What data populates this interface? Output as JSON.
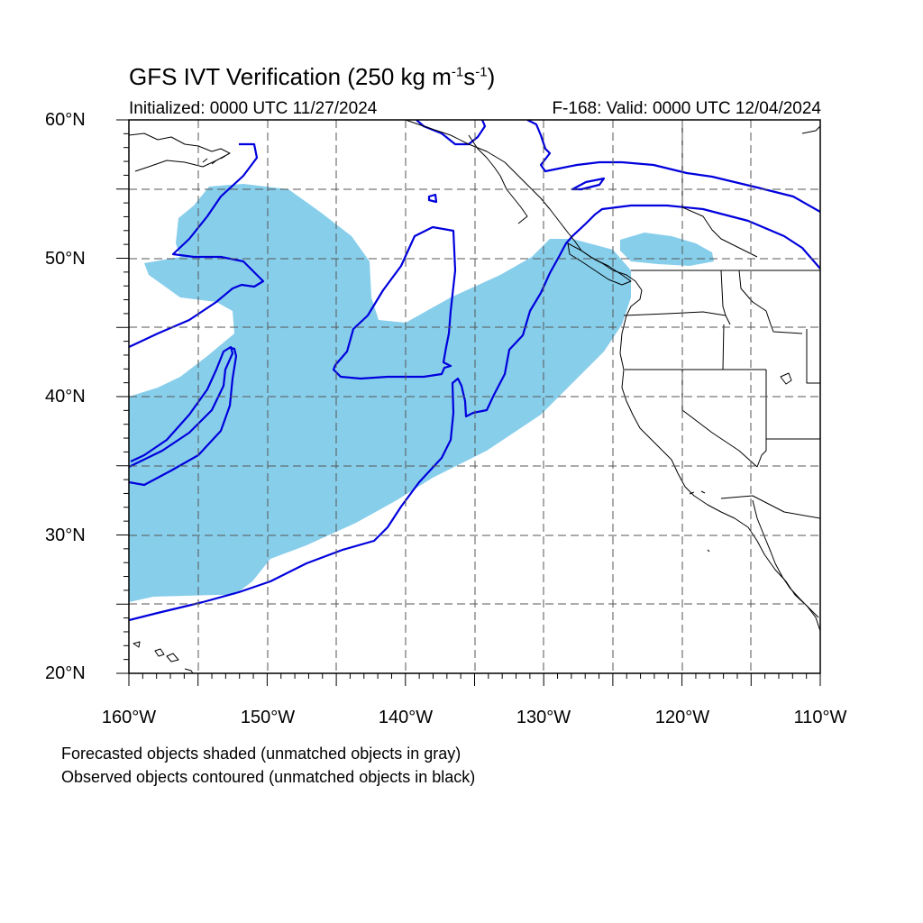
{
  "map": {
    "title_main": "GFS IVT Verification (250 kg m",
    "title_exp1": "-1",
    "title_mid": "s",
    "title_exp2": "-1",
    "title_end": ")",
    "initialized": "Initialized: 0000 UTC 11/27/2024",
    "valid": "F-168: Valid: 0000 UTC 12/04/2024",
    "lat_labels": [
      "60°N",
      "50°N",
      "40°N",
      "30°N",
      "20°N"
    ],
    "lon_labels": [
      "160°W",
      "150°W",
      "140°W",
      "130°W",
      "120°W",
      "110°W"
    ],
    "footnote_forecast": "Forecasted objects shaded (unmatched objects in gray)",
    "footnote_observed": "Observed objects contoured (unmatched objects in black)",
    "extent": {
      "lon_min": -160,
      "lon_max": -110,
      "lat_min": 20,
      "lat_max": 60
    },
    "colors": {
      "forecast_fill": "#87ceeb",
      "observed_contour": "#0000dd",
      "coastline": "#000000"
    }
  }
}
